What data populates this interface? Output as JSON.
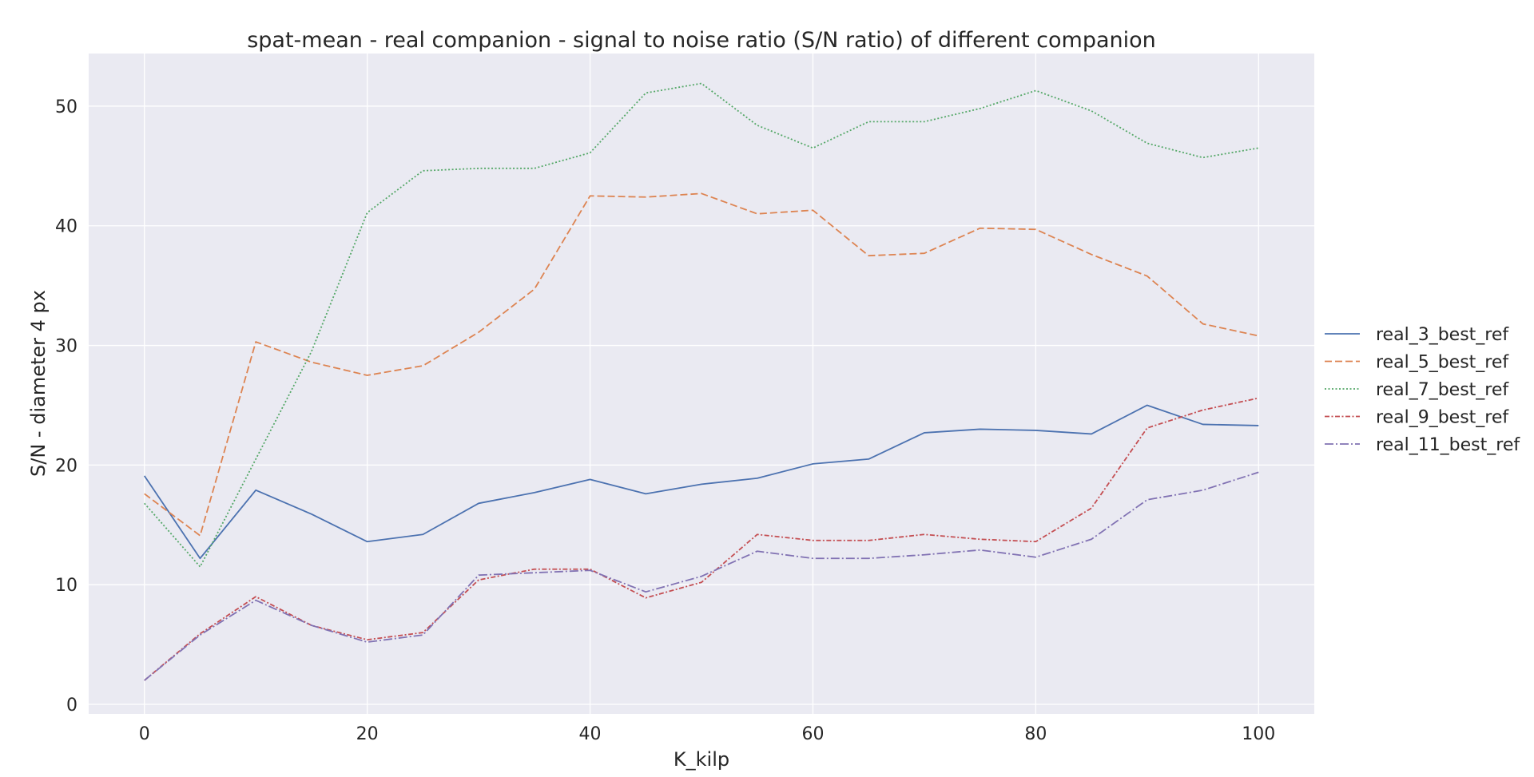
{
  "chart_data": {
    "type": "line",
    "title": "spat-mean - real companion - signal to noise ratio (S/N ratio) of different companion",
    "xlabel": "K_kilp",
    "ylabel": "S/N - diameter 4 px",
    "xlim": [
      -5,
      105
    ],
    "ylim": [
      -0.8,
      54.4
    ],
    "xticks": [
      0,
      20,
      40,
      60,
      80,
      100
    ],
    "yticks": [
      0,
      10,
      20,
      30,
      40,
      50
    ],
    "xtick_labels": [
      "0",
      "20",
      "40",
      "60",
      "80",
      "100"
    ],
    "ytick_labels": [
      "0",
      "10",
      "20",
      "30",
      "40",
      "50"
    ],
    "grid": true,
    "legend_position": "right-outside",
    "x": [
      0,
      5,
      10,
      15,
      20,
      25,
      30,
      35,
      40,
      45,
      50,
      55,
      60,
      65,
      70,
      75,
      80,
      85,
      90,
      95,
      100
    ],
    "series": [
      {
        "name": "real_3_best_ref",
        "color": "#4c72b0",
        "dash": "",
        "values": [
          19.1,
          12.2,
          17.9,
          15.9,
          13.6,
          14.2,
          16.8,
          17.7,
          18.8,
          17.6,
          18.4,
          18.9,
          20.1,
          20.5,
          22.7,
          23.0,
          22.9,
          22.6,
          25.0,
          23.4,
          23.3
        ]
      },
      {
        "name": "real_5_best_ref",
        "color": "#dd8452",
        "dash": "9,4",
        "values": [
          17.6,
          14.1,
          30.3,
          28.6,
          27.5,
          28.3,
          31.1,
          34.7,
          42.5,
          42.4,
          42.7,
          41.0,
          41.3,
          37.5,
          37.7,
          39.8,
          39.7,
          37.6,
          35.8,
          31.8,
          30.8
        ]
      },
      {
        "name": "real_7_best_ref",
        "color": "#55a868",
        "dash": "2,2.5",
        "values": [
          16.8,
          11.5,
          20.5,
          29.5,
          41.1,
          44.6,
          44.8,
          44.8,
          46.1,
          51.1,
          51.9,
          48.4,
          46.5,
          48.7,
          48.7,
          49.8,
          51.3,
          49.6,
          46.9,
          45.7,
          46.5
        ]
      },
      {
        "name": "real_9_best_ref",
        "color": "#c44e52",
        "dash": "6,2.5,2,2.5",
        "values": [
          2.0,
          5.9,
          9.0,
          6.6,
          5.4,
          6.0,
          10.4,
          11.3,
          11.3,
          8.9,
          10.2,
          14.2,
          13.7,
          13.7,
          14.2,
          13.8,
          13.6,
          16.4,
          23.1,
          24.6,
          25.6
        ]
      },
      {
        "name": "real_11_best_ref",
        "color": "#8172b3",
        "dash": "11,3,2,3",
        "values": [
          2.0,
          5.8,
          8.7,
          6.6,
          5.2,
          5.8,
          10.8,
          11.0,
          11.2,
          9.4,
          10.7,
          12.8,
          12.2,
          12.2,
          12.5,
          12.9,
          12.3,
          13.8,
          17.1,
          17.9,
          19.4
        ]
      }
    ]
  }
}
